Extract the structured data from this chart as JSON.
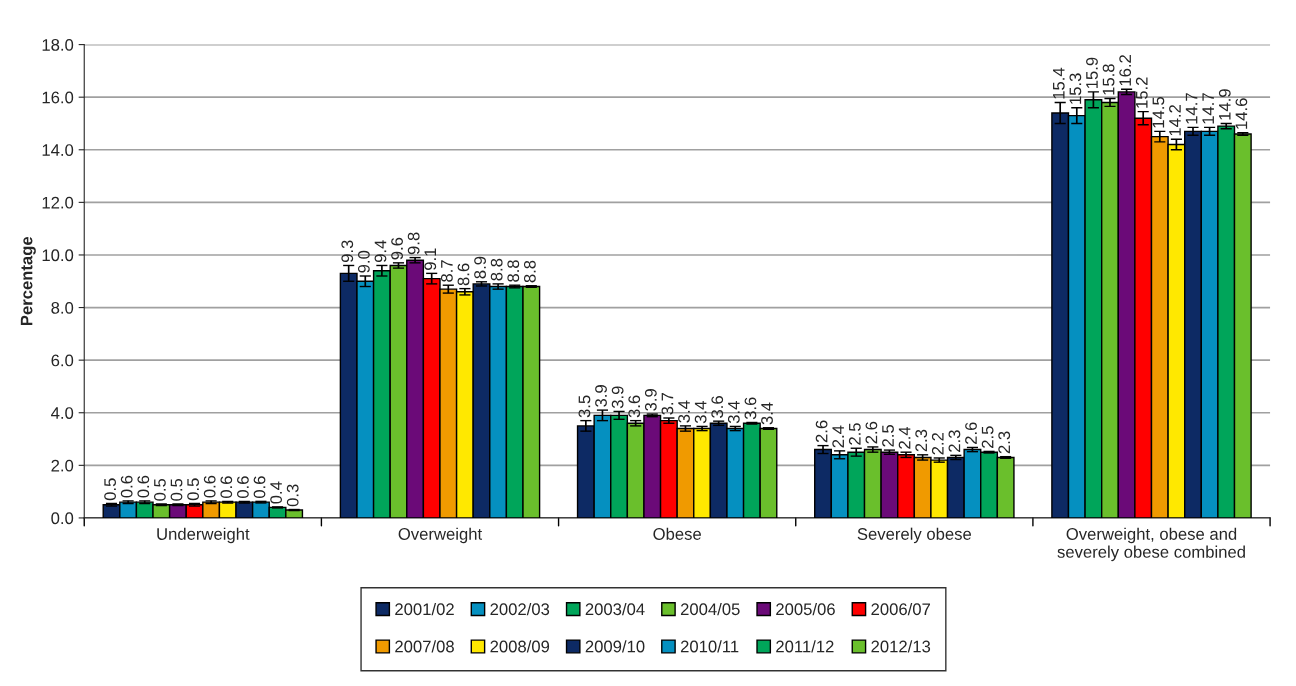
{
  "chart_data": {
    "type": "bar",
    "ylabel": "Percentage",
    "categories": [
      "Underweight",
      "Overweight",
      "Obese",
      "Severely obese",
      "Overweight, obese and\nseverely obese combined"
    ],
    "ylim": [
      0,
      18
    ],
    "yticks": [
      {
        "value": 0,
        "label": "0.0"
      },
      {
        "value": 2,
        "label": "2.0"
      },
      {
        "value": 4,
        "label": "4.0"
      },
      {
        "value": 6,
        "label": "6.0"
      },
      {
        "value": 8,
        "label": "8.0"
      },
      {
        "value": 10,
        "label": "10.0"
      },
      {
        "value": 12,
        "label": "12.0"
      },
      {
        "value": 14,
        "label": "14.0"
      },
      {
        "value": 16,
        "label": "16.0"
      },
      {
        "value": 18,
        "label": "18.0"
      }
    ],
    "grid": "y",
    "legend": "bottom",
    "series": [
      {
        "name": "2001/02",
        "color": "#0d2a64",
        "values": [
          0.5,
          9.3,
          3.5,
          2.6,
          15.4
        ],
        "value_labels": [
          "0.5",
          "9.3",
          "3.5",
          "2.6",
          "15.4"
        ],
        "errors": [
          0.05,
          0.3,
          0.2,
          0.15,
          0.4
        ]
      },
      {
        "name": "2002/03",
        "color": "#0590c0",
        "values": [
          0.6,
          9.0,
          3.9,
          2.4,
          15.3
        ],
        "value_labels": [
          "0.6",
          "9.0",
          "3.9",
          "2.4",
          "15.3"
        ],
        "errors": [
          0.05,
          0.2,
          0.2,
          0.15,
          0.3
        ]
      },
      {
        "name": "2003/04",
        "color": "#00a55a",
        "values": [
          0.6,
          9.4,
          3.9,
          2.5,
          15.9
        ],
        "value_labels": [
          "0.6",
          "9.4",
          "3.9",
          "2.5",
          "15.9"
        ],
        "errors": [
          0.05,
          0.2,
          0.15,
          0.15,
          0.3
        ]
      },
      {
        "name": "2004/05",
        "color": "#6abf2c",
        "values": [
          0.5,
          9.6,
          3.6,
          2.6,
          15.8
        ],
        "value_labels": [
          "0.5",
          "9.6",
          "3.6",
          "2.6",
          "15.8"
        ],
        "errors": [
          0.03,
          0.1,
          0.1,
          0.1,
          0.15
        ]
      },
      {
        "name": "2005/06",
        "color": "#6b0a78",
        "values": [
          0.5,
          9.8,
          3.9,
          2.5,
          16.2
        ],
        "value_labels": [
          "0.5",
          "9.8",
          "3.9",
          "2.5",
          "16.2"
        ],
        "errors": [
          0.03,
          0.1,
          0.05,
          0.08,
          0.1
        ]
      },
      {
        "name": "2006/07",
        "color": "#ff0000",
        "values": [
          0.5,
          9.1,
          3.7,
          2.4,
          15.2
        ],
        "value_labels": [
          "0.5",
          "9.1",
          "3.7",
          "2.4",
          "15.2"
        ],
        "errors": [
          0.05,
          0.2,
          0.1,
          0.1,
          0.25
        ]
      },
      {
        "name": "2007/08",
        "color": "#f09a00",
        "values": [
          0.6,
          8.7,
          3.4,
          2.3,
          14.5
        ],
        "value_labels": [
          "0.6",
          "8.7",
          "3.4",
          "2.3",
          "14.5"
        ],
        "errors": [
          0.05,
          0.15,
          0.1,
          0.1,
          0.2
        ]
      },
      {
        "name": "2008/09",
        "color": "#ffe800",
        "values": [
          0.6,
          8.6,
          3.4,
          2.2,
          14.2
        ],
        "value_labels": [
          "0.6",
          "8.6",
          "3.4",
          "2.2",
          "14.2"
        ],
        "errors": [
          0.03,
          0.12,
          0.08,
          0.08,
          0.2
        ]
      },
      {
        "name": "2009/10",
        "color": "#0d2a64",
        "values": [
          0.6,
          8.9,
          3.6,
          2.3,
          14.7
        ],
        "value_labels": [
          "0.6",
          "8.9",
          "3.6",
          "2.3",
          "14.7"
        ],
        "errors": [
          0.03,
          0.08,
          0.08,
          0.08,
          0.15
        ]
      },
      {
        "name": "2010/11",
        "color": "#0590c0",
        "values": [
          0.6,
          8.8,
          3.4,
          2.6,
          14.7
        ],
        "value_labels": [
          "0.6",
          "8.8",
          "3.4",
          "2.6",
          "14.7"
        ],
        "errors": [
          0.03,
          0.1,
          0.08,
          0.08,
          0.15
        ]
      },
      {
        "name": "2011/12",
        "color": "#00a55a",
        "values": [
          0.4,
          8.8,
          3.6,
          2.5,
          14.9
        ],
        "value_labels": [
          "0.4",
          "8.8",
          "3.6",
          "2.5",
          "14.9"
        ],
        "errors": [
          0.02,
          0.05,
          0.03,
          0.03,
          0.1
        ]
      },
      {
        "name": "2012/13",
        "color": "#6abf2c",
        "values": [
          0.3,
          8.8,
          3.4,
          2.3,
          14.6
        ],
        "value_labels": [
          "0.3",
          "8.8",
          "3.4",
          "2.3",
          "14.6"
        ],
        "errors": [
          0.02,
          0.03,
          0.03,
          0.03,
          0.05
        ]
      }
    ]
  }
}
